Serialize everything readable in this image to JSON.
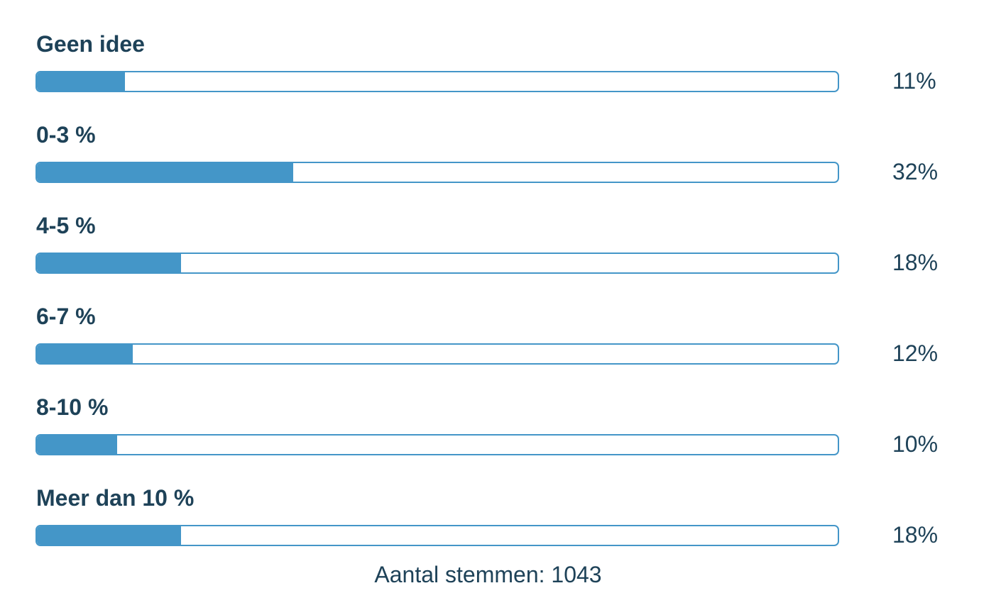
{
  "poll": {
    "options": [
      {
        "label": "Geen idee",
        "percent_text": "11%",
        "fraction": 0.11
      },
      {
        "label": "0-3 %",
        "percent_text": "32%",
        "fraction": 0.32
      },
      {
        "label": "4-5 %",
        "percent_text": "18%",
        "fraction": 0.18
      },
      {
        "label": "6-7 %",
        "percent_text": "12%",
        "fraction": 0.12
      },
      {
        "label": "8-10 %",
        "percent_text": "10%",
        "fraction": 0.1
      },
      {
        "label": "Meer dan 10 %",
        "percent_text": "18%",
        "fraction": 0.18
      }
    ],
    "total_votes_text": "Aantal stemmen: 1043"
  },
  "colors": {
    "bar_fill": "#4496c8",
    "bar_border": "#4496c8",
    "text": "#1e4258"
  }
}
